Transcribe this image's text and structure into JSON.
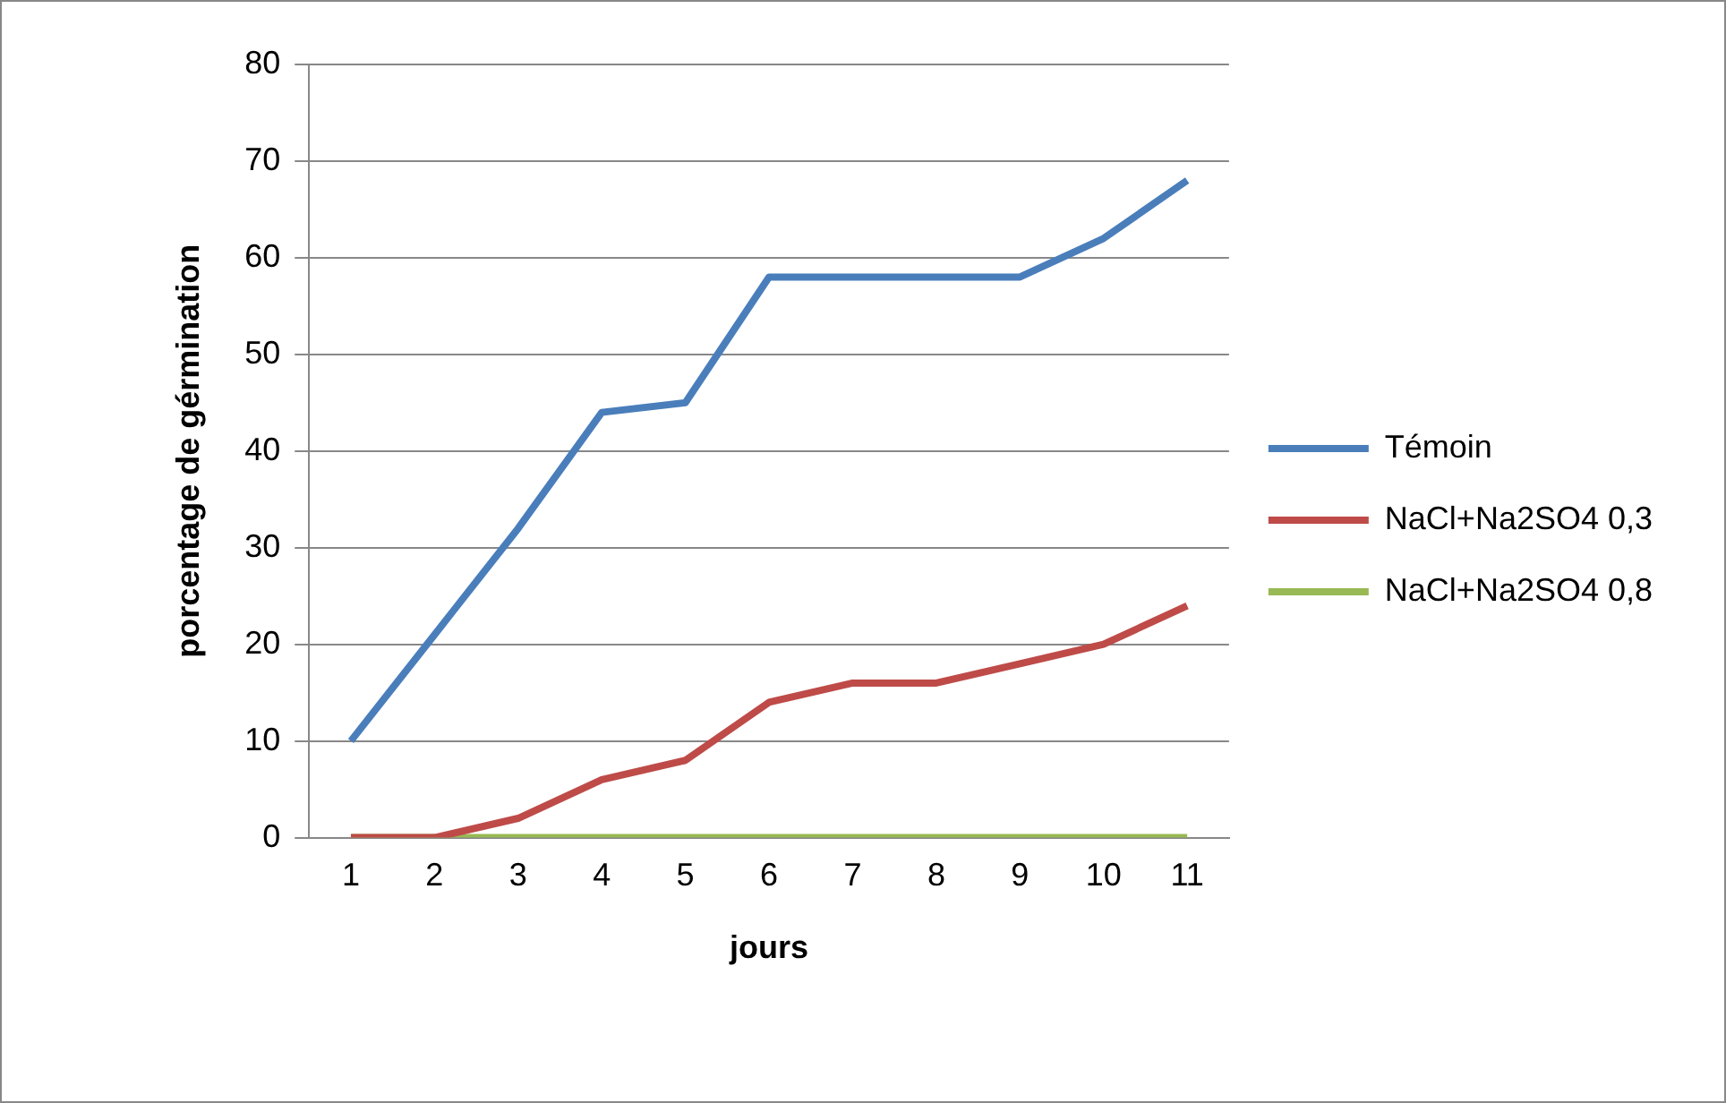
{
  "chart_data": {
    "type": "line",
    "xlabel": "jours",
    "ylabel": "porcentage de gérmination",
    "categories": [
      "1",
      "2",
      "3",
      "4",
      "5",
      "6",
      "7",
      "8",
      "9",
      "10",
      "11"
    ],
    "series": [
      {
        "name": "Témoin",
        "color": "#4a7ebb",
        "values": [
          10,
          21,
          32,
          44,
          45,
          58,
          58,
          58,
          58,
          62,
          68
        ]
      },
      {
        "name": "NaCl+Na2SO4 0,3",
        "color": "#be4b48",
        "values": [
          0,
          0,
          2,
          6,
          8,
          14,
          16,
          16,
          18,
          20,
          24
        ]
      },
      {
        "name": "NaCl+Na2SO4 0,8",
        "color": "#98b954",
        "values": [
          0,
          0,
          0,
          0,
          0,
          0,
          0,
          0,
          0,
          0,
          0
        ]
      }
    ],
    "ylim": [
      0,
      80
    ],
    "yticks": [
      0,
      10,
      20,
      30,
      40,
      50,
      60,
      70,
      80
    ],
    "grid": "y",
    "legend": "right",
    "marker": "none",
    "line_style": "solid"
  }
}
